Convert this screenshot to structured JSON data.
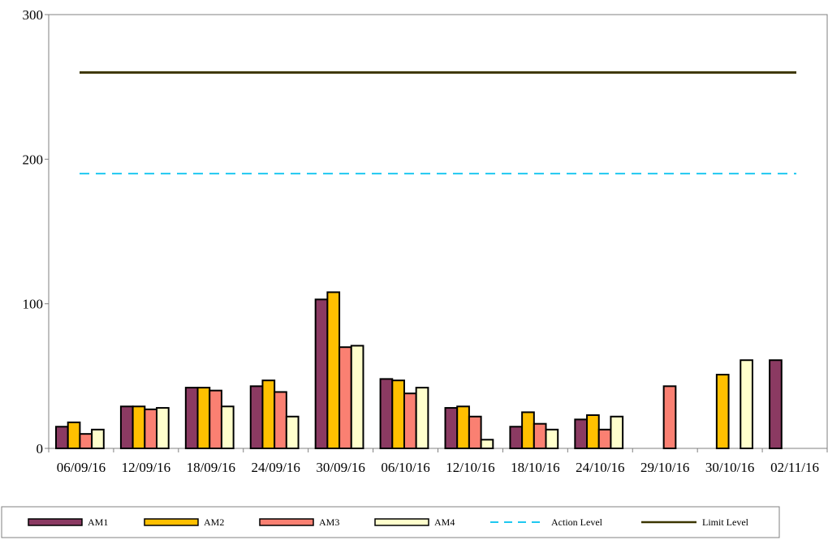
{
  "chart_data": {
    "type": "bar",
    "title": "",
    "xlabel": "",
    "ylabel": "",
    "ylim": [
      0,
      300
    ],
    "yticks": [
      0,
      100,
      200,
      300
    ],
    "grid": false,
    "legend_position": "bottom",
    "categories": [
      "06/09/16",
      "12/09/16",
      "18/09/16",
      "24/09/16",
      "30/09/16",
      "06/10/16",
      "12/10/16",
      "18/10/16",
      "24/10/16",
      "29/10/16",
      "30/10/16",
      "02/11/16"
    ],
    "series": [
      {
        "name": "AM1",
        "color": "#8B3A62",
        "values": [
          15,
          29,
          42,
          43,
          103,
          48,
          28,
          15,
          20,
          null,
          null,
          61
        ]
      },
      {
        "name": "AM2",
        "color": "#FFC000",
        "values": [
          18,
          29,
          42,
          47,
          108,
          47,
          29,
          25,
          23,
          null,
          51,
          null
        ]
      },
      {
        "name": "AM3",
        "color": "#FA8072",
        "values": [
          10,
          27,
          40,
          39,
          70,
          38,
          22,
          17,
          13,
          43,
          null,
          null
        ]
      },
      {
        "name": "AM4",
        "color": "#FFFFCC",
        "values": [
          13,
          28,
          29,
          22,
          71,
          42,
          6,
          13,
          22,
          null,
          61,
          null
        ]
      }
    ],
    "lines": [
      {
        "name": "Action Level",
        "value": 190,
        "color": "#1EC8F0",
        "style": "dashed"
      },
      {
        "name": "Limit Level",
        "value": 260,
        "color": "#3B3500",
        "style": "solid"
      }
    ]
  }
}
